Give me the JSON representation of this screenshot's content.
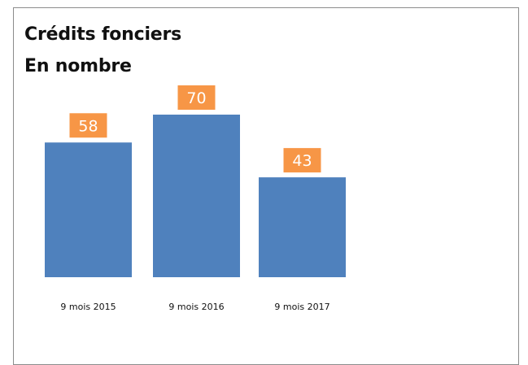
{
  "chart_data": {
    "type": "bar",
    "title": "Crédits fonciers",
    "subtitle": "En nombre",
    "categories": [
      "9 mois 2015",
      "9 mois 2016",
      "9 mois 2017"
    ],
    "values": [
      58,
      70,
      43
    ],
    "xlabel": "",
    "ylabel": "",
    "ylim": [
      0,
      70
    ],
    "grid": false,
    "legend": "none",
    "data_labels": true
  },
  "colors": {
    "bar": "#4f81bd",
    "label_box": "#f79646",
    "label_text": "#ffffff",
    "frame": "#8c8c8c"
  }
}
